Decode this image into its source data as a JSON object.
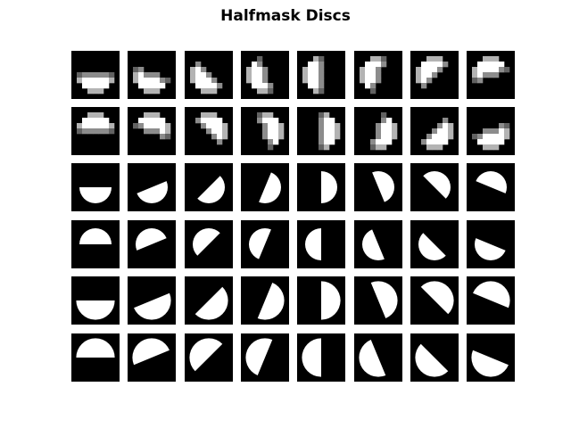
{
  "title": "Halfmask Discs",
  "colors": {
    "background": "#000000",
    "disc": "#ffffff"
  },
  "grid": {
    "rows": 6,
    "columns": 8,
    "row_scale": [
      {
        "radius": 3,
        "pixelated": true
      },
      {
        "radius": 3,
        "pixelated": true
      },
      {
        "radius": 5,
        "pixelated": false
      },
      {
        "radius": 5,
        "pixelated": false
      },
      {
        "radius": 6,
        "pixelated": false
      },
      {
        "radius": 6,
        "pixelated": false
      }
    ],
    "row_half": [
      "lower",
      "upper",
      "lower",
      "upper",
      "lower",
      "upper"
    ],
    "column_angle_deg": [
      0,
      22.5,
      45,
      67.5,
      90,
      112.5,
      135,
      157.5
    ]
  }
}
